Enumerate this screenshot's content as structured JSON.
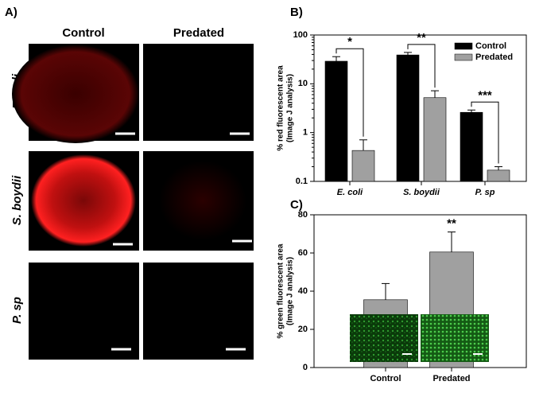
{
  "panel_a": {
    "label": "A)",
    "columns": [
      "Control",
      "Predated"
    ],
    "rows": [
      "E. coli",
      "S. boydii",
      "P. sp"
    ]
  },
  "chart_data": [
    {
      "type": "bar",
      "panel_label": "B)",
      "log_scale": true,
      "y_label": [
        "% red fluorescent area",
        "(Image J analysis)"
      ],
      "categories": [
        "E. coli",
        "S. boydii",
        "P. sp"
      ],
      "series": [
        {
          "name": "Control",
          "color": "#000000",
          "values": [
            29,
            39,
            2.6
          ],
          "errors": [
            7,
            5,
            0.3
          ]
        },
        {
          "name": "Predated",
          "color": "#a0a0a0",
          "values": [
            0.43,
            5.2,
            0.17
          ],
          "errors": [
            0.28,
            2,
            0.03
          ]
        }
      ],
      "annotations": [
        "*",
        "**",
        "***"
      ],
      "ylim": [
        0.1,
        100
      ],
      "yticks": [
        0.1,
        1,
        10,
        100
      ],
      "legend": "upper-right"
    },
    {
      "type": "bar",
      "panel_label": "C)",
      "log_scale": false,
      "y_label": [
        "% green fluorescent area",
        "(Image J analysis)"
      ],
      "categories": [
        "Control",
        "Predated"
      ],
      "series": [
        {
          "name": "Predated",
          "color": "#a0a0a0",
          "values": [
            35.5,
            60.5
          ],
          "errors": [
            8.5,
            10.5
          ]
        }
      ],
      "annotations": [
        "**"
      ],
      "ylim": [
        0,
        80
      ],
      "yticks": [
        0,
        20,
        40,
        60,
        80
      ]
    }
  ]
}
